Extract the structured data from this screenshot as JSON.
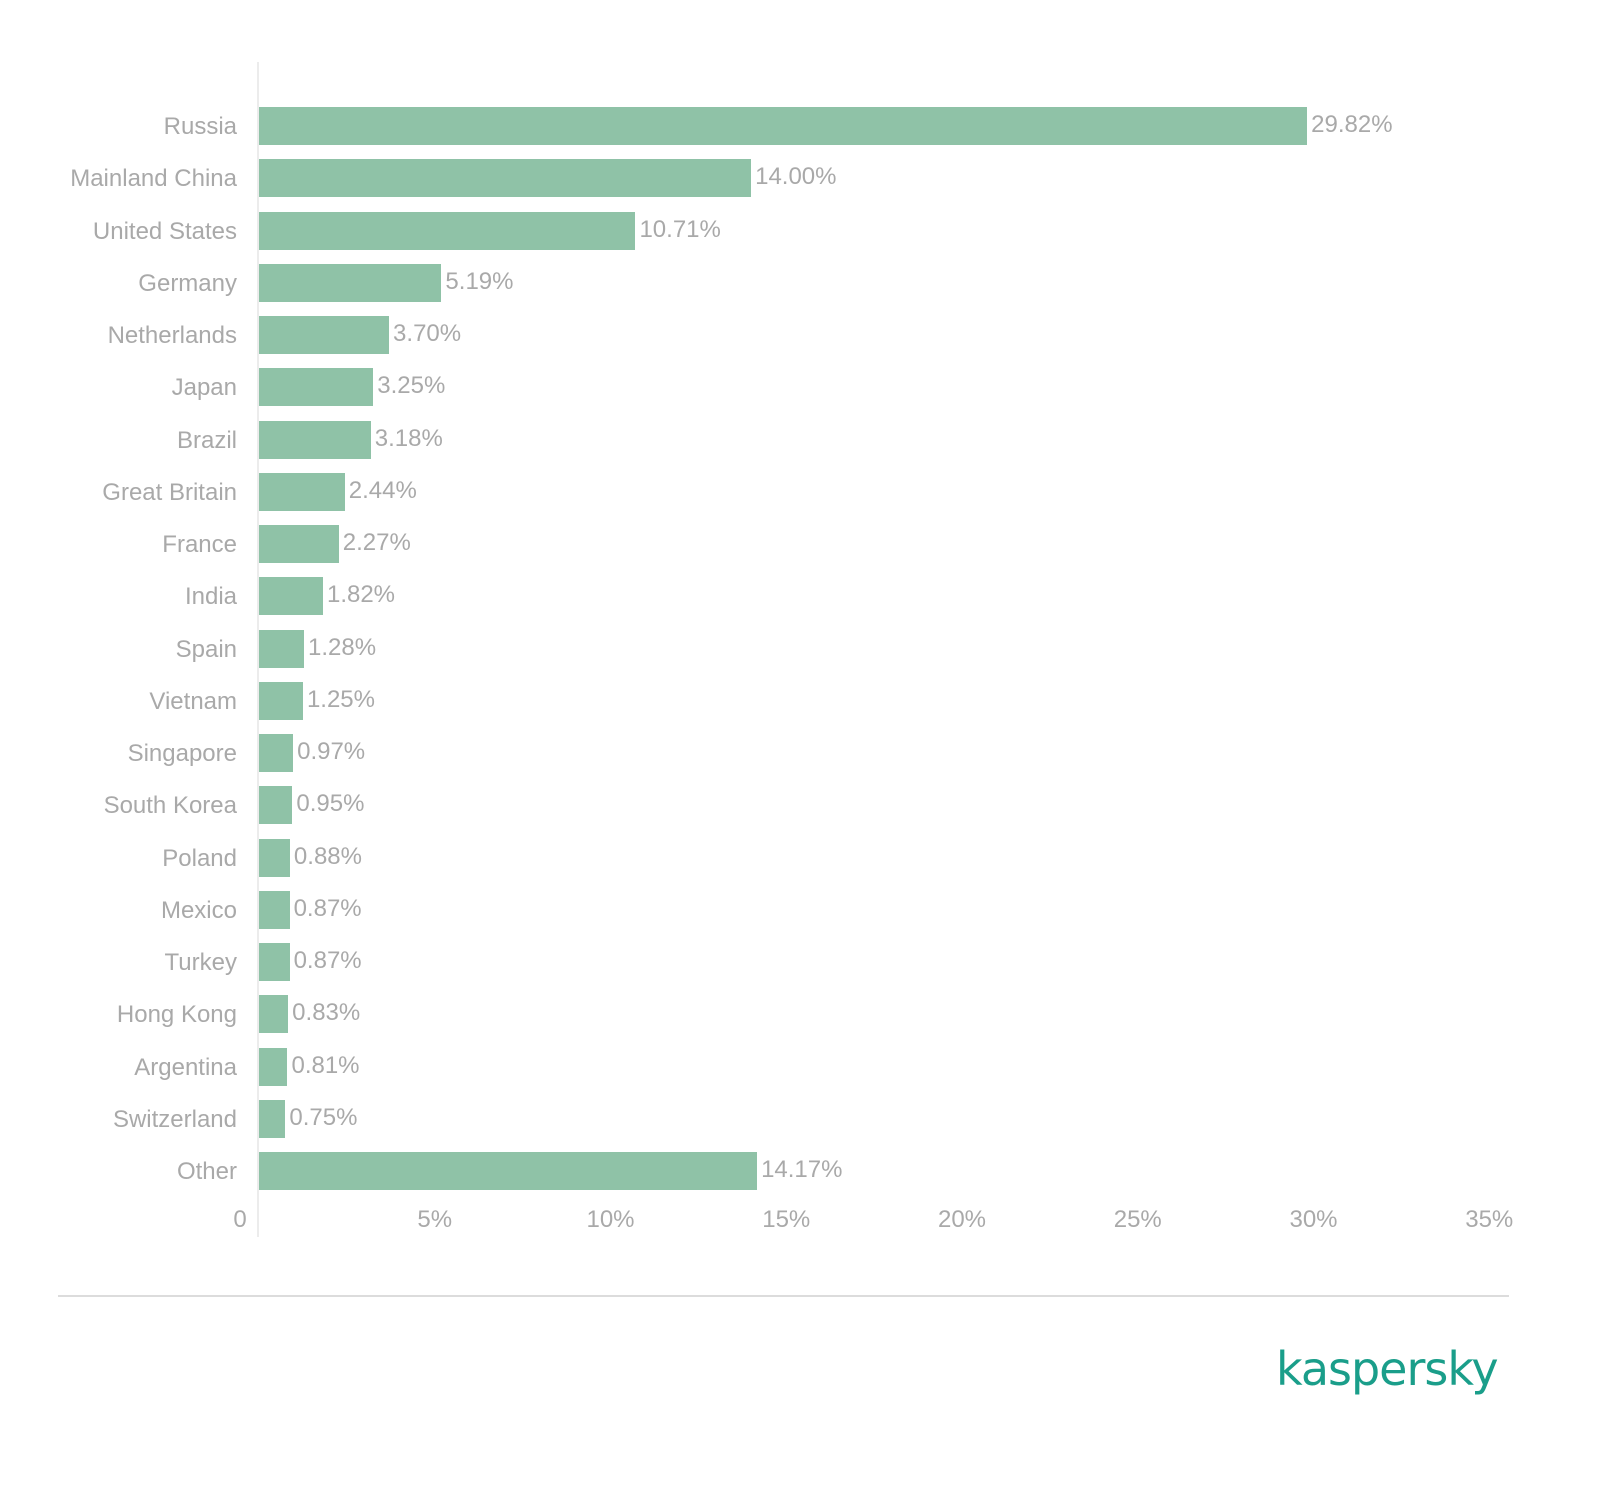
{
  "chart_data": {
    "type": "bar",
    "orientation": "horizontal",
    "title": "",
    "xlabel": "",
    "ylabel": "",
    "xlim": [
      0,
      35
    ],
    "grid": false,
    "legend": null,
    "categories": [
      "Russia",
      "Mainland China",
      "United States",
      "Germany",
      "Netherlands",
      "Japan",
      "Brazil",
      "Great Britain",
      "France",
      "India",
      "Spain",
      "Vietnam",
      "Singapore",
      "South Korea",
      "Poland",
      "Mexico",
      "Turkey",
      "Hong Kong",
      "Argentina",
      "Switzerland",
      "Other"
    ],
    "values": [
      29.82,
      14.0,
      10.71,
      5.19,
      3.7,
      3.25,
      3.18,
      2.44,
      2.27,
      1.82,
      1.28,
      1.25,
      0.97,
      0.95,
      0.88,
      0.87,
      0.87,
      0.83,
      0.81,
      0.75,
      14.17
    ],
    "value_labels": [
      "29.82%",
      "14.00%",
      "10.71%",
      "5.19%",
      "3.70%",
      "3.25%",
      "3.18%",
      "2.44%",
      "2.27%",
      "1.82%",
      "1.28%",
      "1.25%",
      "0.97%",
      "0.95%",
      "0.88%",
      "0.87%",
      "0.87%",
      "0.83%",
      "0.81%",
      "0.75%",
      "14.17%"
    ],
    "x_ticks": [
      "0",
      "5%",
      "10%",
      "15%",
      "20%",
      "25%",
      "30%",
      "35%"
    ],
    "x_tick_values": [
      0,
      5,
      10,
      15,
      20,
      25,
      30,
      35
    ],
    "bar_color": "#8fc2a7"
  },
  "brand": {
    "logo_text": "kaspersky",
    "color": "#1a9e8a"
  }
}
